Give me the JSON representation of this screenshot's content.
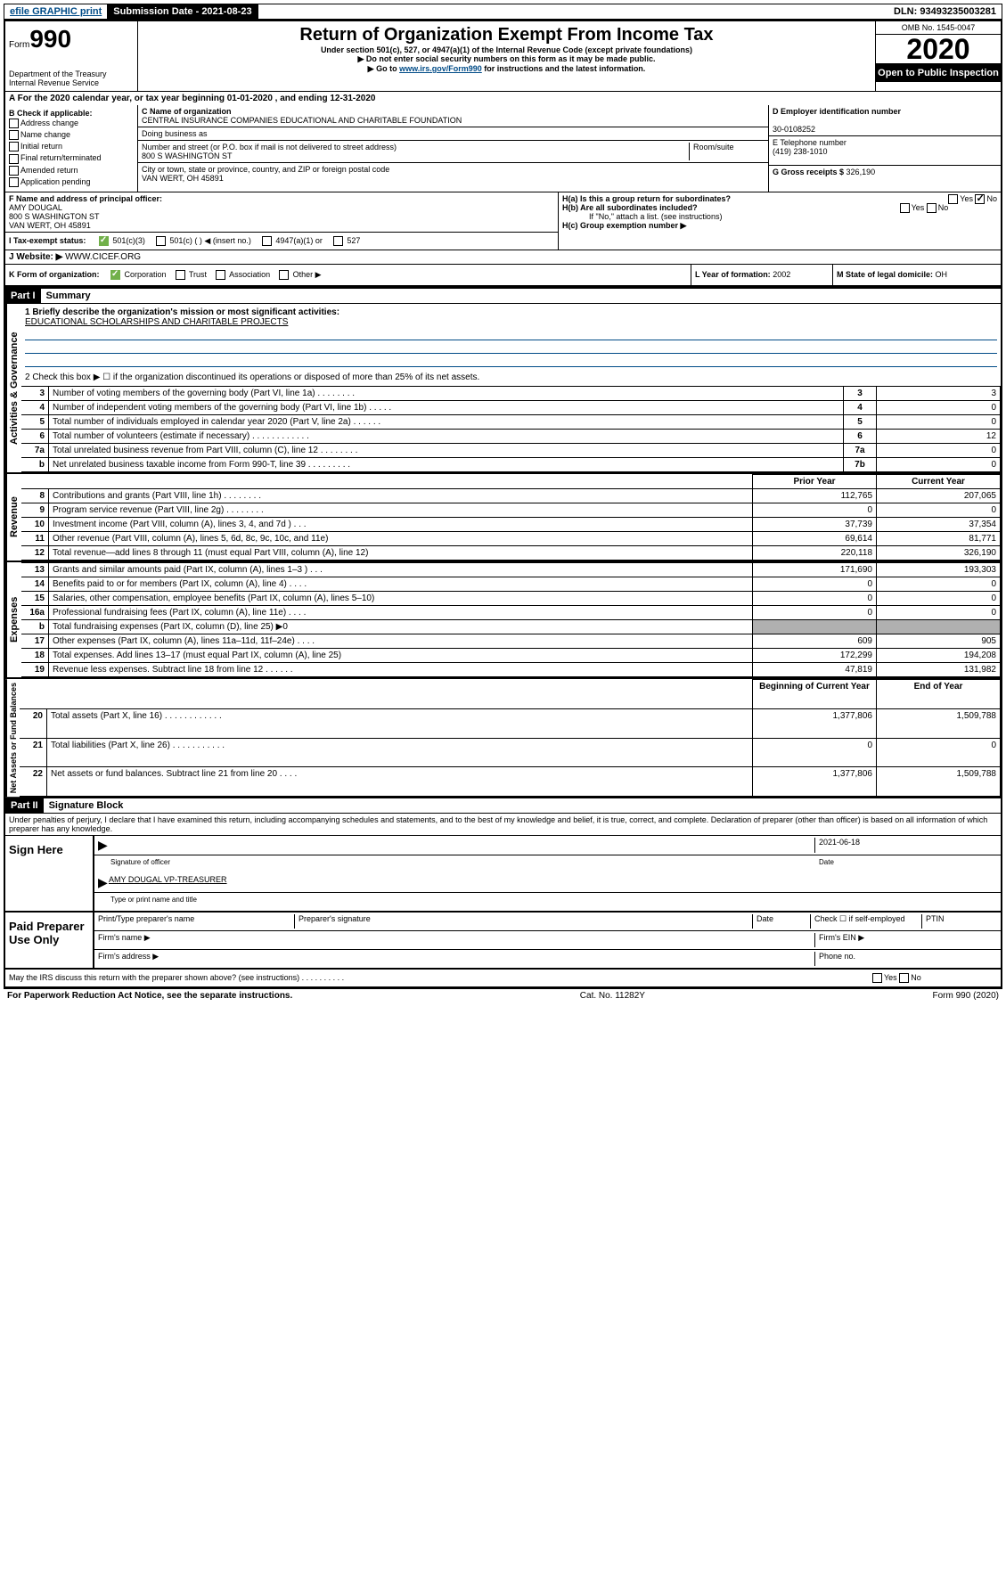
{
  "topbar": {
    "efile": "efile GRAPHIC print",
    "submission_label": "Submission Date - 2021-08-23",
    "dln": "DLN: 93493235003281"
  },
  "header": {
    "form_label": "Form",
    "form_number": "990",
    "dept": "Department of the Treasury\nInternal Revenue Service",
    "title": "Return of Organization Exempt From Income Tax",
    "subtitle": "Under section 501(c), 527, or 4947(a)(1) of the Internal Revenue Code (except private foundations)",
    "note1": "▶ Do not enter social security numbers on this form as it may be made public.",
    "note2_prefix": "▶ Go to ",
    "note2_link": "www.irs.gov/Form990",
    "note2_suffix": " for instructions and the latest information.",
    "omb": "OMB No. 1545-0047",
    "year": "2020",
    "inspection": "Open to Public Inspection"
  },
  "period": {
    "label_a": "A For the 2020 calendar year, or tax year beginning ",
    "begin": "01-01-2020",
    "mid": " , and ending ",
    "end": "12-31-2020"
  },
  "section_b": {
    "label": "B Check if applicable:",
    "items": [
      "Address change",
      "Name change",
      "Initial return",
      "Final return/terminated",
      "Amended return",
      "Application pending"
    ]
  },
  "section_c": {
    "name_label": "C Name of organization",
    "name": "CENTRAL INSURANCE COMPANIES EDUCATIONAL AND CHARITABLE FOUNDATION",
    "dba_label": "Doing business as",
    "addr_label": "Number and street (or P.O. box if mail is not delivered to street address)",
    "addr": "800 S WASHINGTON ST",
    "room_label": "Room/suite",
    "city_label": "City or town, state or province, country, and ZIP or foreign postal code",
    "city": "VAN WERT, OH  45891"
  },
  "section_d": {
    "label": "D Employer identification number",
    "ein": "30-0108252",
    "phone_label": "E Telephone number",
    "phone": "(419) 238-1010",
    "gross_label": "G Gross receipts $ ",
    "gross": "326,190"
  },
  "section_f": {
    "label": "F Name and address of principal officer:",
    "name": "AMY DOUGAL",
    "addr1": "800 S WASHINGTON ST",
    "addr2": "VAN WERT, OH  45891"
  },
  "section_h": {
    "ha_label": "H(a)  Is this a group return for subordinates?",
    "hb_label": "H(b)  Are all subordinates included?",
    "hb_note": "If \"No,\" attach a list. (see instructions)",
    "hc_label": "H(c)  Group exemption number ▶",
    "yes": "Yes",
    "no": "No"
  },
  "section_i": {
    "label": "I Tax-exempt status:",
    "opts": [
      "501(c)(3)",
      "501(c) (  ) ◀ (insert no.)",
      "4947(a)(1) or",
      "527"
    ]
  },
  "section_j": {
    "label": "J   Website: ▶",
    "value": "WWW.CICEF.ORG"
  },
  "section_k": {
    "label": "K Form of organization:",
    "opts": [
      "Corporation",
      "Trust",
      "Association",
      "Other ▶"
    ],
    "l_label": "L Year of formation: ",
    "l_val": "2002",
    "m_label": "M State of legal domicile: ",
    "m_val": "OH"
  },
  "part1": {
    "header": "Part I",
    "title": "Summary",
    "q1_label": "1  Briefly describe the organization's mission or most significant activities:",
    "q1_val": "EDUCATIONAL SCHOLARSHIPS AND CHARITABLE PROJECTS",
    "q2": "2   Check this box ▶ ☐  if the organization discontinued its operations or disposed of more than 25% of its net assets.",
    "rows_gov": [
      {
        "n": "3",
        "desc": "Number of voting members of the governing body (Part VI, line 1a)   .    .    .    .    .    .    .    .",
        "box": "3",
        "v": "3"
      },
      {
        "n": "4",
        "desc": "Number of independent voting members of the governing body (Part VI, line 1b)   .    .    .    .    .",
        "box": "4",
        "v": "0"
      },
      {
        "n": "5",
        "desc": "Total number of individuals employed in calendar year 2020 (Part V, line 2a)   .    .    .    .    .    .",
        "box": "5",
        "v": "0"
      },
      {
        "n": "6",
        "desc": "Total number of volunteers (estimate if necessary)   .    .    .    .    .    .    .    .    .    .    .    .",
        "box": "6",
        "v": "12"
      },
      {
        "n": "7a",
        "desc": "Total unrelated business revenue from Part VIII, column (C), line 12   .    .    .    .    .    .    .    .",
        "box": "7a",
        "v": "0"
      },
      {
        "n": "b",
        "desc": "Net unrelated business taxable income from Form 990-T, line 39   .    .    .    .    .    .    .    .    .",
        "box": "7b",
        "v": "0"
      }
    ],
    "col_prior": "Prior Year",
    "col_current": "Current Year",
    "rows_rev": [
      {
        "n": "8",
        "desc": "Contributions and grants (Part VIII, line 1h)   .   .   .   .   .   .   .   .",
        "p": "112,765",
        "c": "207,065"
      },
      {
        "n": "9",
        "desc": "Program service revenue (Part VIII, line 2g)   .   .   .   .   .   .   .   .",
        "p": "0",
        "c": "0"
      },
      {
        "n": "10",
        "desc": "Investment income (Part VIII, column (A), lines 3, 4, and 7d )   .   .   .",
        "p": "37,739",
        "c": "37,354"
      },
      {
        "n": "11",
        "desc": "Other revenue (Part VIII, column (A), lines 5, 6d, 8c, 9c, 10c, and 11e)",
        "p": "69,614",
        "c": "81,771"
      },
      {
        "n": "12",
        "desc": "Total revenue—add lines 8 through 11 (must equal Part VIII, column (A), line 12)",
        "p": "220,118",
        "c": "326,190"
      }
    ],
    "rows_exp": [
      {
        "n": "13",
        "desc": "Grants and similar amounts paid (Part IX, column (A), lines 1–3 )   .   .   .",
        "p": "171,690",
        "c": "193,303"
      },
      {
        "n": "14",
        "desc": "Benefits paid to or for members (Part IX, column (A), line 4)   .   .   .   .",
        "p": "0",
        "c": "0"
      },
      {
        "n": "15",
        "desc": "Salaries, other compensation, employee benefits (Part IX, column (A), lines 5–10)",
        "p": "0",
        "c": "0"
      },
      {
        "n": "16a",
        "desc": "Professional fundraising fees (Part IX, column (A), line 11e)   .   .   .   .",
        "p": "0",
        "c": "0"
      },
      {
        "n": "b",
        "desc": "Total fundraising expenses (Part IX, column (D), line 25) ▶0",
        "p": "",
        "c": "",
        "shaded": true
      },
      {
        "n": "17",
        "desc": "Other expenses (Part IX, column (A), lines 11a–11d, 11f–24e)   .   .   .   .",
        "p": "609",
        "c": "905"
      },
      {
        "n": "18",
        "desc": "Total expenses. Add lines 13–17 (must equal Part IX, column (A), line 25)",
        "p": "172,299",
        "c": "194,208"
      },
      {
        "n": "19",
        "desc": "Revenue less expenses. Subtract line 18 from line 12   .   .   .   .   .   .",
        "p": "47,819",
        "c": "131,982"
      }
    ],
    "col_begin": "Beginning of Current Year",
    "col_end": "End of Year",
    "rows_net": [
      {
        "n": "20",
        "desc": "Total assets (Part X, line 16)   .   .   .   .   .   .   .   .   .   .   .   .",
        "p": "1,377,806",
        "c": "1,509,788"
      },
      {
        "n": "21",
        "desc": "Total liabilities (Part X, line 26)   .   .   .   .   .   .   .   .   .   .   .",
        "p": "0",
        "c": "0"
      },
      {
        "n": "22",
        "desc": "Net assets or fund balances. Subtract line 21 from line 20   .   .   .   .",
        "p": "1,377,806",
        "c": "1,509,788"
      }
    ],
    "vlabels": {
      "gov": "Activities & Governance",
      "rev": "Revenue",
      "exp": "Expenses",
      "net": "Net Assets or Fund Balances"
    }
  },
  "part2": {
    "header": "Part II",
    "title": "Signature Block",
    "perjury": "Under penalties of perjury, I declare that I have examined this return, including accompanying schedules and statements, and to the best of my knowledge and belief, it is true, correct, and complete. Declaration of preparer (other than officer) is based on all information of which preparer has any knowledge.",
    "sign_here": "Sign Here",
    "sig_officer": "Signature of officer",
    "sig_date": "2021-06-18",
    "sig_date_label": "Date",
    "officer_name": "AMY DOUGAL  VP-TREASURER",
    "officer_label": "Type or print name and title",
    "paid_label": "Paid Preparer Use Only",
    "prep_name_label": "Print/Type preparer's name",
    "prep_sig_label": "Preparer's signature",
    "date_label": "Date",
    "check_label": "Check ☐ if self-employed",
    "ptin_label": "PTIN",
    "firm_name_label": "Firm's name  ▶",
    "firm_ein_label": "Firm's EIN ▶",
    "firm_addr_label": "Firm's address ▶",
    "phone_label": "Phone no.",
    "discuss": "May the IRS discuss this return with the preparer shown above? (see instructions)   .    .    .    .    .    .    .    .    .    .",
    "yes": "Yes",
    "no": "No"
  },
  "footer": {
    "left": "For Paperwork Reduction Act Notice, see the separate instructions.",
    "mid": "Cat. No. 11282Y",
    "right": "Form 990 (2020)"
  }
}
